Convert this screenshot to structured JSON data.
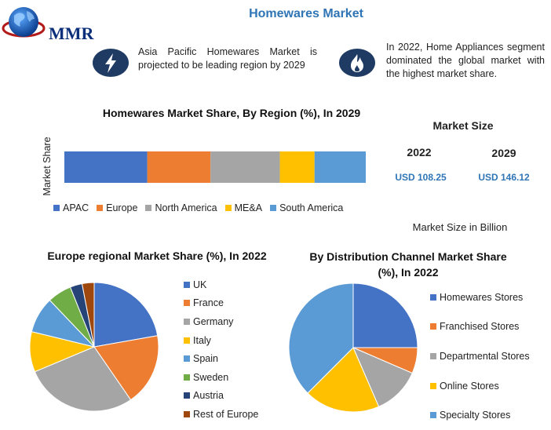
{
  "header": {
    "title": "Homewares Market",
    "logo_text": "MMR"
  },
  "notes": [
    {
      "icon": "lightning-bolt-icon",
      "text": "Asia Pacific Homewares Market is projected to be leading region by 2029"
    },
    {
      "icon": "flame-icon",
      "text": "In 2022, Home Appliances segment dominated the global market with the highest market share."
    }
  ],
  "colors": {
    "badge": "#1f3b63",
    "title_blue": "#2f75b5"
  },
  "market_size": {
    "title": "Market Size",
    "years": [
      "2022",
      "2029"
    ],
    "values": [
      "USD 108.25",
      "USD 146.12"
    ],
    "note": "Market Size in Billion"
  },
  "chart_data": [
    {
      "type": "bar",
      "orientation": "horizontal-stacked",
      "title": "Homewares Market  Share, By Region (%), In 2029",
      "ylabel": "Market Share",
      "categories": [
        ""
      ],
      "series": [
        {
          "name": "APAC",
          "values": [
            27.5
          ],
          "color": "#4472c4"
        },
        {
          "name": "Europe",
          "values": [
            21
          ],
          "color": "#ed7d31"
        },
        {
          "name": "North America",
          "values": [
            23
          ],
          "color": "#a5a5a5"
        },
        {
          "name": "ME&A",
          "values": [
            11.5
          ],
          "color": "#ffc000"
        },
        {
          "name": "South America",
          "values": [
            17
          ],
          "color": "#5b9bd5"
        }
      ],
      "legend": "bottom"
    },
    {
      "type": "pie",
      "title": "Europe regional Market Share (%), In 2022",
      "labels": [
        "UK",
        "France",
        "Germany",
        "Italy",
        "Spain",
        "Sweden",
        "Austria",
        "Rest of Europe"
      ],
      "values": [
        22,
        18,
        28,
        10,
        9,
        6,
        3,
        3
      ],
      "colors": [
        "#4472c4",
        "#ed7d31",
        "#a5a5a5",
        "#ffc000",
        "#5b9bd5",
        "#70ad47",
        "#264478",
        "#9e480e"
      ],
      "legend": "right"
    },
    {
      "type": "pie",
      "title": "By Distribution Channel Market Share (%), In 2022",
      "labels": [
        "Homewares Stores",
        "Franchised Stores",
        "Departmental Stores",
        "Online Stores",
        "Specialty Stores"
      ],
      "values": [
        25,
        6.5,
        12,
        19,
        37.5
      ],
      "colors": [
        "#4472c4",
        "#ed7d31",
        "#a5a5a5",
        "#ffc000",
        "#5b9bd5"
      ],
      "legend": "right"
    }
  ]
}
